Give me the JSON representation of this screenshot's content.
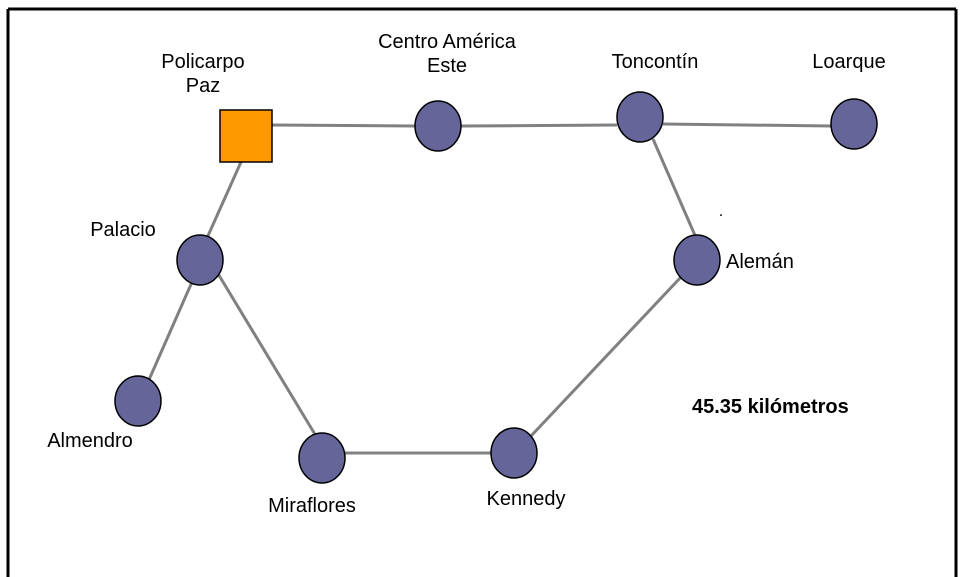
{
  "colors": {
    "node_fill": "#65659a",
    "node_stroke": "#000000",
    "hub_fill": "#ff9900",
    "edge": "#808080"
  },
  "nodes": {
    "policarpo": {
      "line1": "Policarpo",
      "line2": "Paz"
    },
    "centro": {
      "line1": "Centro América",
      "line2": "Este"
    },
    "toncontin": {
      "label": "Toncontín"
    },
    "loarque": {
      "label": "Loarque"
    },
    "palacio": {
      "label": "Palacio"
    },
    "aleman": {
      "label": "Alemán"
    },
    "almendro": {
      "label": "Almendro"
    },
    "miraflores": {
      "label": "Miraflores"
    },
    "kennedy": {
      "label": "Kennedy"
    }
  },
  "stray_mark": ".",
  "total_distance": "45.35 kilómetros"
}
